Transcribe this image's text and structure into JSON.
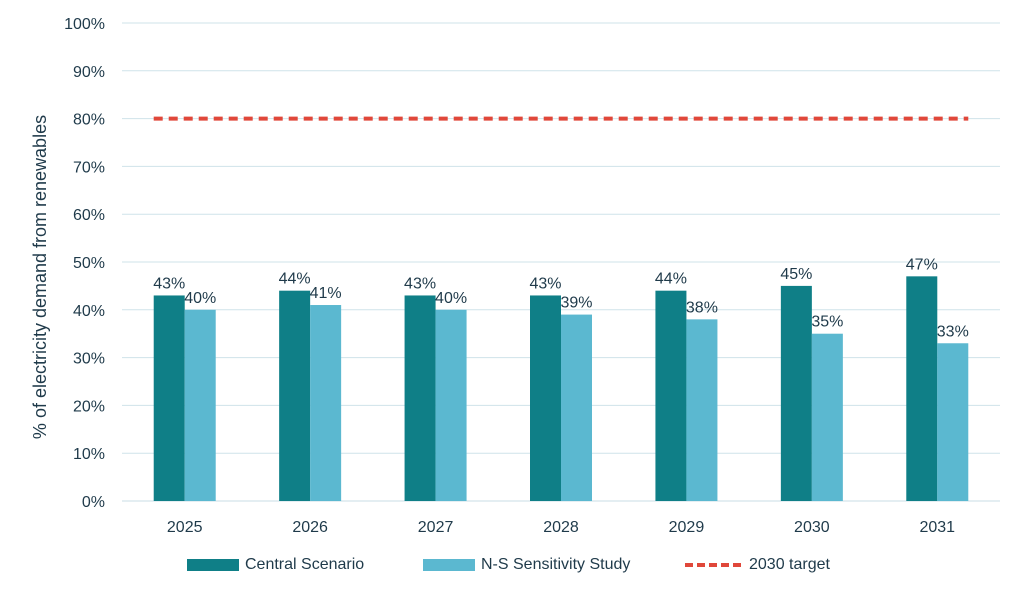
{
  "chart_data": {
    "type": "bar",
    "categories": [
      "2025",
      "2026",
      "2027",
      "2028",
      "2029",
      "2030",
      "2031"
    ],
    "series": [
      {
        "name": "Central Scenario",
        "values": [
          43,
          44,
          43,
          43,
          44,
          45,
          47
        ],
        "labels": [
          "43%",
          "44%",
          "43%",
          "43%",
          "44%",
          "45%",
          "47%"
        ],
        "color": "#0f7f87"
      },
      {
        "name": "N-S Sensitivity Study",
        "values": [
          40,
          41,
          40,
          39,
          38,
          35,
          33
        ],
        "labels": [
          "40%",
          "41%",
          "40%",
          "39%",
          "38%",
          "35%",
          "33%"
        ],
        "color": "#5bb8d0"
      }
    ],
    "target_line": {
      "name": "2030 target",
      "value": 80,
      "color": "#e0473a"
    },
    "ylabel": "% of electricity demand from renewables",
    "xlabel": "",
    "ylim": [
      0,
      100
    ],
    "yticks": [
      "0%",
      "10%",
      "20%",
      "30%",
      "40%",
      "50%",
      "60%",
      "70%",
      "80%",
      "90%",
      "100%"
    ],
    "grid": true,
    "legend_position": "bottom"
  }
}
